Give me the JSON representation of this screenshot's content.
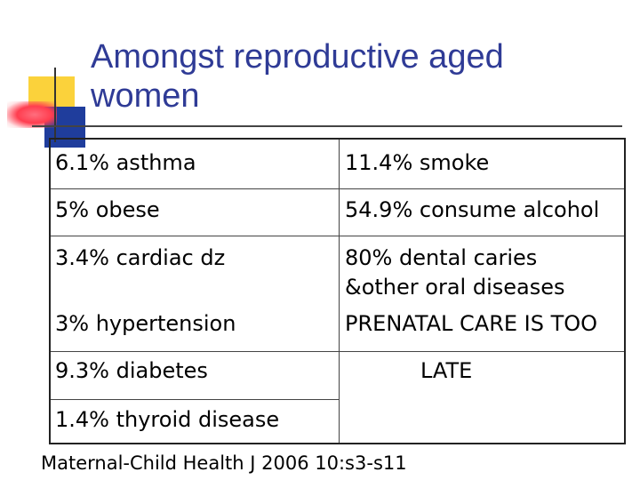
{
  "slide": {
    "title_line1": "Amongst reproductive aged",
    "title_line2": "women",
    "title_color": "#2f3b96"
  },
  "table": {
    "left_column": [
      "6.1% asthma",
      "5% obese",
      "3.4% cardiac dz",
      "3% hypertension",
      "9.3% diabetes",
      "1.4% thyroid disease"
    ],
    "right_column": [
      "11.4% smoke",
      "54.9% consume alcohol",
      "80% dental caries",
      "&other oral diseases",
      "PRENATAL CARE IS TOO",
      "LATE"
    ]
  },
  "citation": "Maternal-Child Health J 2006 10:s3-s11",
  "decoration": {
    "square_yellow": "#fbd23b",
    "square_blue": "#1f3d9c",
    "square_red": "#ff3d4f"
  }
}
